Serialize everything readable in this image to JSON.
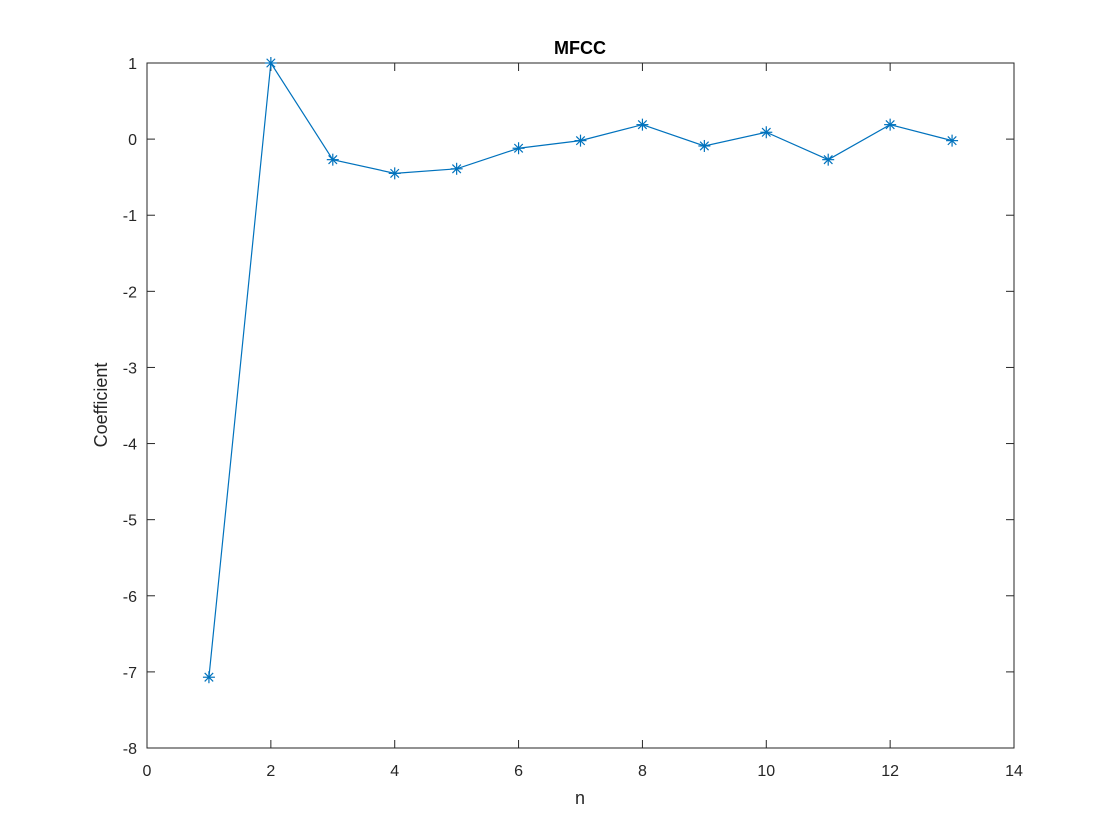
{
  "chart_data": {
    "type": "line",
    "title": "MFCC",
    "xlabel": "n",
    "ylabel": "Coefficient",
    "xlim": [
      0,
      14
    ],
    "ylim": [
      -8,
      1
    ],
    "xticks": [
      0,
      2,
      4,
      6,
      8,
      10,
      12,
      14
    ],
    "yticks": [
      -8,
      -7,
      -6,
      -5,
      -4,
      -3,
      -2,
      -1,
      0,
      1
    ],
    "grid": false,
    "marker": "asterisk",
    "color": "#0072BD",
    "series": [
      {
        "x": [
          1,
          2,
          3,
          4,
          5,
          6,
          7,
          8,
          9,
          10,
          11,
          12,
          13
        ],
        "y": [
          -7.07,
          1.0,
          -0.27,
          -0.45,
          -0.39,
          -0.12,
          -0.02,
          0.19,
          -0.09,
          0.09,
          -0.27,
          0.19,
          -0.02
        ]
      }
    ]
  }
}
